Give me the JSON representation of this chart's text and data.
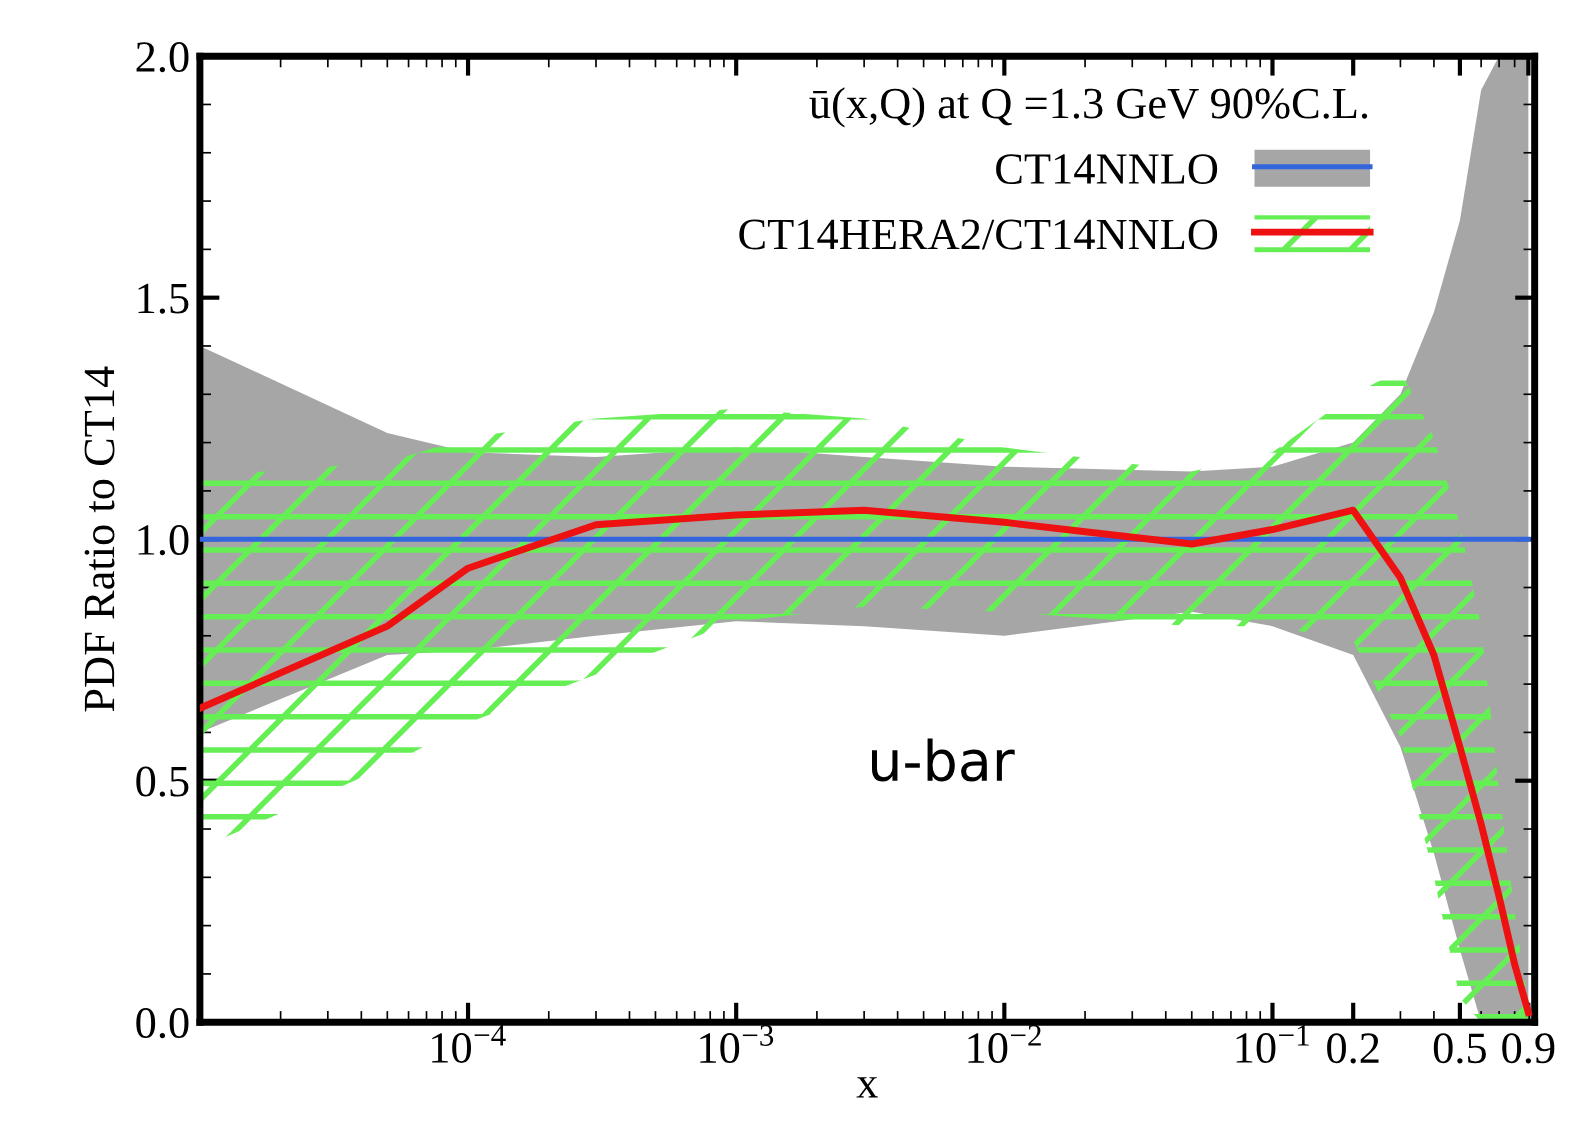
{
  "chart_data": {
    "type": "line",
    "legend_title": "ū(x,Q) at Q =1.3 GeV 90%C.L.",
    "xlabel": "x",
    "ylabel": "PDF Ratio to CT14",
    "annotations": [
      "u-bar"
    ],
    "x": [
      1e-05,
      5e-05,
      0.0001,
      0.0003,
      0.001,
      0.003,
      0.01,
      0.05,
      0.1,
      0.2,
      0.3,
      0.4,
      0.5,
      0.6,
      0.7,
      0.8,
      0.9
    ],
    "series": [
      {
        "name": "CT14NNLO",
        "color": "#3366dd",
        "values": [
          1,
          1,
          1,
          1,
          1,
          1,
          1,
          1,
          1,
          1,
          1,
          1,
          1,
          1,
          1,
          1,
          1
        ],
        "lower": [
          0.6,
          0.76,
          0.77,
          0.8,
          0.83,
          0.82,
          0.8,
          0.85,
          0.82,
          0.76,
          0.57,
          0.35,
          0.15,
          0,
          0,
          0,
          0
        ],
        "upper": [
          1.4,
          1.22,
          1.18,
          1.17,
          1.19,
          1.17,
          1.15,
          1.14,
          1.15,
          1.2,
          1.3,
          1.47,
          1.66,
          1.93,
          2.0,
          2.0,
          2.0
        ]
      },
      {
        "name": "CT14HERA2/CT14NNLO",
        "color": "#ee1111",
        "values": [
          0.65,
          0.82,
          0.94,
          1.03,
          1.05,
          1.06,
          1.035,
          0.99,
          1.02,
          1.06,
          0.92,
          0.76,
          0.57,
          0.41,
          0.26,
          0.12,
          0.02
        ],
        "lower": [
          0.36,
          0.53,
          0.62,
          0.72,
          0.83,
          0.86,
          0.85,
          0.82,
          0.82,
          0.79,
          0.59,
          0.3,
          0.05,
          0,
          0,
          0,
          0
        ],
        "upper": [
          1.13,
          1.16,
          1.21,
          1.25,
          1.27,
          1.25,
          1.19,
          1.14,
          1.18,
          1.3,
          1.35,
          1.21,
          1.03,
          0.82,
          0.48,
          0.23,
          0.03
        ]
      }
    ],
    "log": "x",
    "xlim": [
      1e-05,
      0.95
    ],
    "xticks": [
      {
        "value": 0.0001,
        "label": "10$^{−4}$"
      },
      {
        "value": 0.001,
        "label": "10$^{−3}$"
      },
      {
        "value": 0.01,
        "label": "10$^{−2}$"
      },
      {
        "value": 0.1,
        "label": "10$^{−1}$"
      },
      0.2,
      0.5,
      0.9
    ],
    "ylim": [
      0,
      2
    ],
    "yticks": [
      {
        "value": 0,
        "label": "0.0"
      },
      0.5,
      {
        "value": 1,
        "label": "1.0"
      },
      1.5,
      {
        "value": 2,
        "label": "2.0"
      }
    ],
    "legend": "top right",
    "grid": false
  }
}
